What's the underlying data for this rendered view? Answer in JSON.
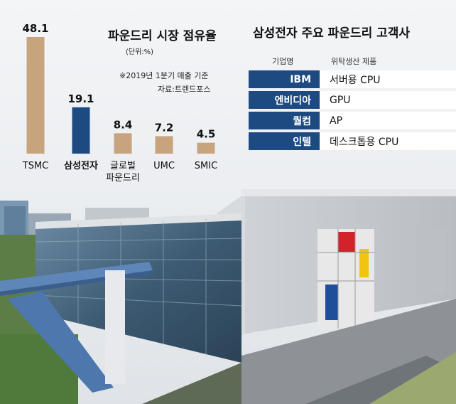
{
  "chart_data": {
    "type": "bar",
    "title": "파운드리 시장 점유율",
    "unit": "(단위:%)",
    "note": "※2019년 1분기 매출 기준",
    "source": "자료:트렌드포스",
    "categories": [
      "TSMC",
      "삼성전자",
      "글로벌\n파운드리",
      "UMC",
      "SMIC"
    ],
    "values": [
      48.1,
      19.1,
      8.4,
      7.2,
      4.5
    ],
    "value_labels": [
      "48.1",
      "19.1",
      "8.4",
      "7.2",
      "4.5"
    ],
    "highlight_index": 1,
    "colors": {
      "bar": "#c8a47e",
      "highlight": "#1d4a80"
    },
    "ylim": [
      0,
      50
    ],
    "grid": false,
    "legend": "none"
  },
  "table": {
    "title": "삼성전자 주요 파운드리 고객사",
    "headers": [
      "기업명",
      "위탁생산 제품"
    ],
    "rows": [
      {
        "company": "IBM",
        "product": "서버용 CPU"
      },
      {
        "company": "엔비디아",
        "product": "GPU"
      },
      {
        "company": "퀄컴",
        "product": "AP"
      },
      {
        "company": "인텔",
        "product": "데스크톱용 CPU"
      }
    ]
  },
  "colors": {
    "table_company_bg": "#1d4a80",
    "table_product_bg": "#ffffff"
  }
}
